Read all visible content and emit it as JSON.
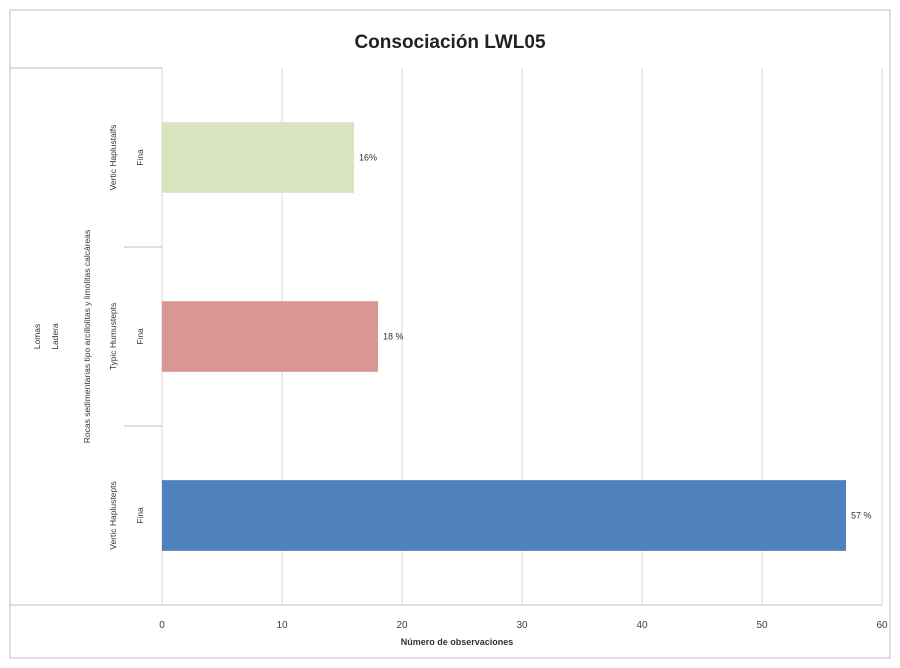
{
  "chart_data": {
    "type": "bar",
    "orientation": "horizontal",
    "title": "Consociación LWL05",
    "xlabel": "Número de observaciones",
    "ylabel": "",
    "xlim": [
      0,
      60
    ],
    "xticks": [
      0,
      10,
      20,
      30,
      40,
      50,
      60
    ],
    "grid": "vertical",
    "legend": "none",
    "category_levels": {
      "paisaje": "Lomas",
      "relieve": "Ladera",
      "material": "Rocas sedimentarias tipo arcillolitas y limolitas calcáreas"
    },
    "categories": [
      {
        "taxonomy": "Vertic Haplustalfs",
        "texture": "Fina",
        "value": 16,
        "label": "16%",
        "color": "#d7e4bd"
      },
      {
        "taxonomy": "Typic Humustepts",
        "texture": "Fina",
        "value": 18,
        "label": "18 %",
        "color": "#d99694"
      },
      {
        "taxonomy": "Vertic Haplustepts",
        "texture": "Fina",
        "value": 57,
        "label": "57 %",
        "color": "#4f81bd"
      }
    ]
  }
}
